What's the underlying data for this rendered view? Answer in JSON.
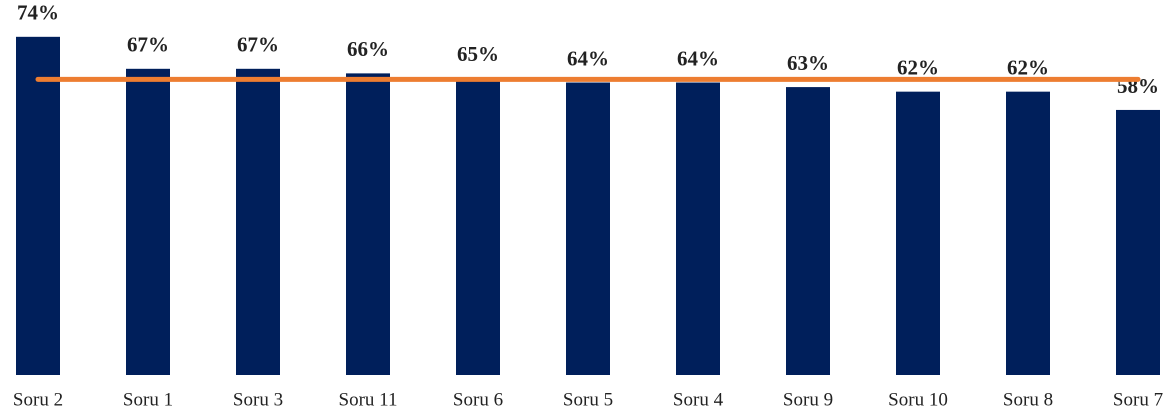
{
  "chart_data": {
    "type": "bar",
    "categories": [
      "Soru 2",
      "Soru 1",
      "Soru 3",
      "Soru 11",
      "Soru 6",
      "Soru 5",
      "Soru 4",
      "Soru 9",
      "Soru 10",
      "Soru 8",
      "Soru 7"
    ],
    "series": [
      {
        "type": "bar",
        "color": "#001f5b",
        "values": [
          74,
          67,
          67,
          66,
          65,
          64,
          64,
          63,
          62,
          62,
          58
        ],
        "value_labels": [
          "74%",
          "67%",
          "67%",
          "66%",
          "65%",
          "64%",
          "64%",
          "63%",
          "62%",
          "62%",
          "58%"
        ]
      },
      {
        "type": "line",
        "color": "#ed7d31",
        "values": [
          64.7,
          64.7,
          64.7,
          64.7,
          64.7,
          64.7,
          64.7,
          64.7,
          64.7,
          64.7,
          64.7
        ]
      }
    ],
    "ylim": [
      0,
      80
    ]
  }
}
